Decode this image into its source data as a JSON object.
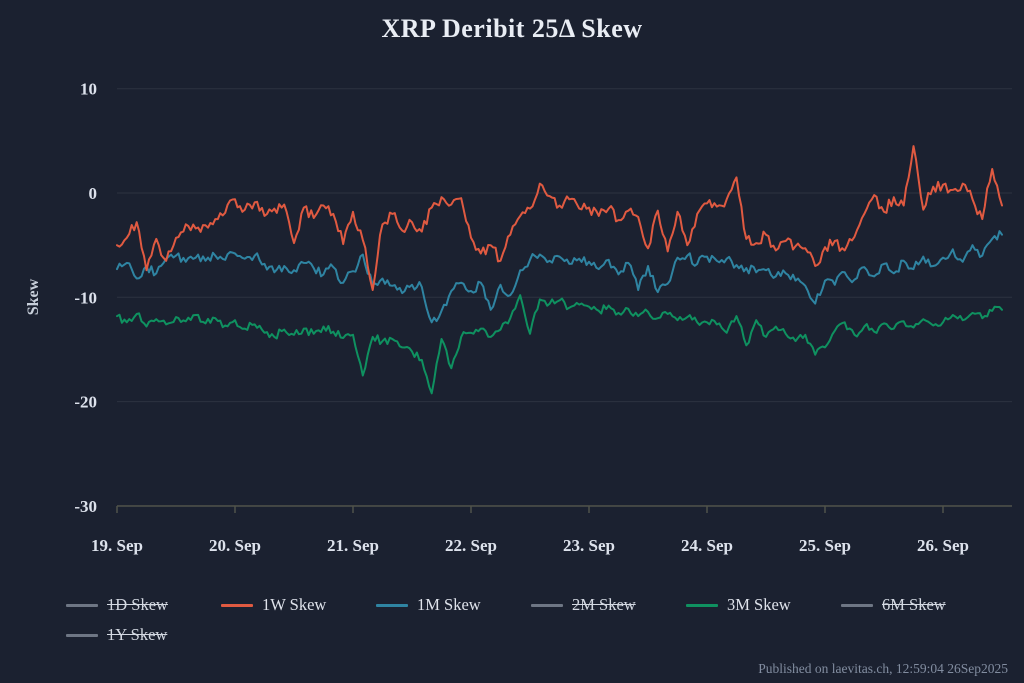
{
  "title": "XRP Deribit 25Δ Skew",
  "footer": "Published on laevitas.ch, 12:59:04 26Sep2025",
  "colors": {
    "background": "#1b2130",
    "grid": "rgba(255,255,255,0.08)",
    "axis_line": "#50534a",
    "text": "#dde2ec",
    "red_series": "#e05a41",
    "teal_series": "#2f84a2",
    "green_series": "#0f9160",
    "disabled_series": "#6e7684"
  },
  "legend": {
    "items": [
      {
        "label": "1D Skew",
        "color": "#6e7684",
        "enabled": false
      },
      {
        "label": "1W Skew",
        "color": "#e05a41",
        "enabled": true
      },
      {
        "label": "1M Skew",
        "color": "#2f84a2",
        "enabled": true
      },
      {
        "label": "2M Skew",
        "color": "#6e7684",
        "enabled": false
      },
      {
        "label": "3M Skew",
        "color": "#0f9160",
        "enabled": true
      },
      {
        "label": "6M Skew",
        "color": "#6e7684",
        "enabled": false
      },
      {
        "label": "1Y Skew",
        "color": "#6e7684",
        "enabled": false
      }
    ]
  },
  "chart_data": {
    "type": "line",
    "title": "XRP Deribit 25Δ Skew",
    "xlabel": "",
    "ylabel": "Skew",
    "ylim": [
      -30,
      10
    ],
    "yticks": [
      10,
      0,
      -10,
      -20,
      -30
    ],
    "grid": "horizontal",
    "legend_position": "bottom-left",
    "x_unit": "days since 19 Sep 2025 00:00",
    "x_start": 0,
    "x_step": 0.0833333,
    "xtick_positions": [
      0,
      1,
      2,
      3,
      4,
      5,
      6,
      7
    ],
    "xtick_labels": [
      "19. Sep",
      "20. Sep",
      "21. Sep",
      "22. Sep",
      "23. Sep",
      "24. Sep",
      "25. Sep",
      "26. Sep"
    ],
    "hidden_series": [
      "1D Skew",
      "2M Skew",
      "6M Skew",
      "1Y Skew"
    ],
    "series": [
      {
        "name": "3M Skew",
        "color": "#0f9160",
        "values": [
          -11.8,
          -12.4,
          -11.6,
          -12.8,
          -12.1,
          -12.6,
          -11.9,
          -12.3,
          -11.7,
          -12.5,
          -12.0,
          -12.7,
          -12.2,
          -13.0,
          -12.6,
          -13.4,
          -13.8,
          -13.1,
          -13.6,
          -13.0,
          -13.5,
          -12.8,
          -13.3,
          -13.9,
          -13.6,
          -17.5,
          -13.8,
          -14.2,
          -14.0,
          -14.8,
          -15.2,
          -16.0,
          -19.2,
          -14.0,
          -16.8,
          -13.8,
          -13.4,
          -13.0,
          -13.8,
          -13.1,
          -12.0,
          -9.8,
          -13.5,
          -10.2,
          -10.6,
          -10.3,
          -11.0,
          -10.7,
          -10.9,
          -11.3,
          -10.8,
          -11.5,
          -11.1,
          -11.8,
          -11.4,
          -12.0,
          -11.6,
          -12.2,
          -11.9,
          -12.4,
          -12.4,
          -12.6,
          -13.4,
          -11.8,
          -14.6,
          -12.2,
          -13.8,
          -12.8,
          -13.5,
          -14.2,
          -13.6,
          -15.5,
          -14.8,
          -13.2,
          -12.4,
          -13.6,
          -12.8,
          -13.3,
          -12.5,
          -13.0,
          -12.3,
          -12.9,
          -12.1,
          -12.7,
          -12.4,
          -11.7,
          -12.2,
          -11.5,
          -12.0,
          -11.3,
          -11.2
        ]
      },
      {
        "name": "1M Skew",
        "color": "#2f84a2",
        "values": [
          -7.3,
          -6.7,
          -8.2,
          -7.0,
          -7.7,
          -6.3,
          -6.0,
          -6.6,
          -6.2,
          -6.5,
          -6.0,
          -6.4,
          -5.8,
          -6.3,
          -6.0,
          -6.8,
          -7.6,
          -7.0,
          -7.4,
          -6.7,
          -7.2,
          -7.8,
          -7.1,
          -8.6,
          -7.5,
          -5.9,
          -8.8,
          -8.2,
          -8.9,
          -9.6,
          -8.8,
          -9.0,
          -12.4,
          -11.3,
          -9.4,
          -8.6,
          -9.4,
          -8.6,
          -11.2,
          -8.8,
          -9.8,
          -7.4,
          -6.4,
          -5.9,
          -6.5,
          -6.1,
          -6.8,
          -6.3,
          -6.6,
          -7.3,
          -6.4,
          -7.8,
          -6.7,
          -9.3,
          -7.0,
          -9.5,
          -8.7,
          -6.2,
          -6.0,
          -6.8,
          -6.1,
          -6.5,
          -6.3,
          -6.9,
          -7.2,
          -7.6,
          -7.4,
          -8.0,
          -7.7,
          -8.4,
          -8.9,
          -10.6,
          -8.4,
          -8.8,
          -7.6,
          -8.3,
          -7.1,
          -8.0,
          -6.8,
          -7.7,
          -6.5,
          -7.3,
          -6.1,
          -7.0,
          -6.2,
          -5.4,
          -6.6,
          -5.0,
          -6.0,
          -4.4,
          -4.0
        ]
      },
      {
        "name": "1W Skew",
        "color": "#e05a41",
        "values": [
          -5.0,
          -4.3,
          -2.8,
          -7.4,
          -4.4,
          -6.5,
          -4.3,
          -3.0,
          -3.4,
          -3.1,
          -2.5,
          -1.9,
          -0.6,
          -1.6,
          -0.9,
          -2.2,
          -1.5,
          -1.1,
          -4.8,
          -1.4,
          -2.4,
          -1.2,
          -2.0,
          -4.9,
          -1.8,
          -4.5,
          -9.3,
          -3.0,
          -2.0,
          -3.6,
          -2.8,
          -3.7,
          -1.4,
          -0.4,
          -1.1,
          -0.5,
          -4.3,
          -5.8,
          -5.0,
          -6.5,
          -4.0,
          -2.2,
          -1.5,
          0.9,
          -0.3,
          -1.2,
          -0.6,
          -1.5,
          -1.4,
          -2.2,
          -1.5,
          -2.6,
          -1.7,
          -2.3,
          -5.3,
          -1.7,
          -5.6,
          -1.8,
          -5.0,
          -2.0,
          -1.0,
          -1.3,
          -0.6,
          1.5,
          -4.4,
          -4.8,
          -4.0,
          -5.5,
          -4.6,
          -5.1,
          -5.3,
          -7.0,
          -5.2,
          -4.6,
          -5.5,
          -4.2,
          -2.0,
          -0.2,
          -1.8,
          -0.4,
          -1.2,
          4.5,
          -1.6,
          0.6,
          0.8,
          0.3,
          0.9,
          -0.6,
          -2.5,
          2.3,
          -1.2
        ]
      }
    ]
  }
}
